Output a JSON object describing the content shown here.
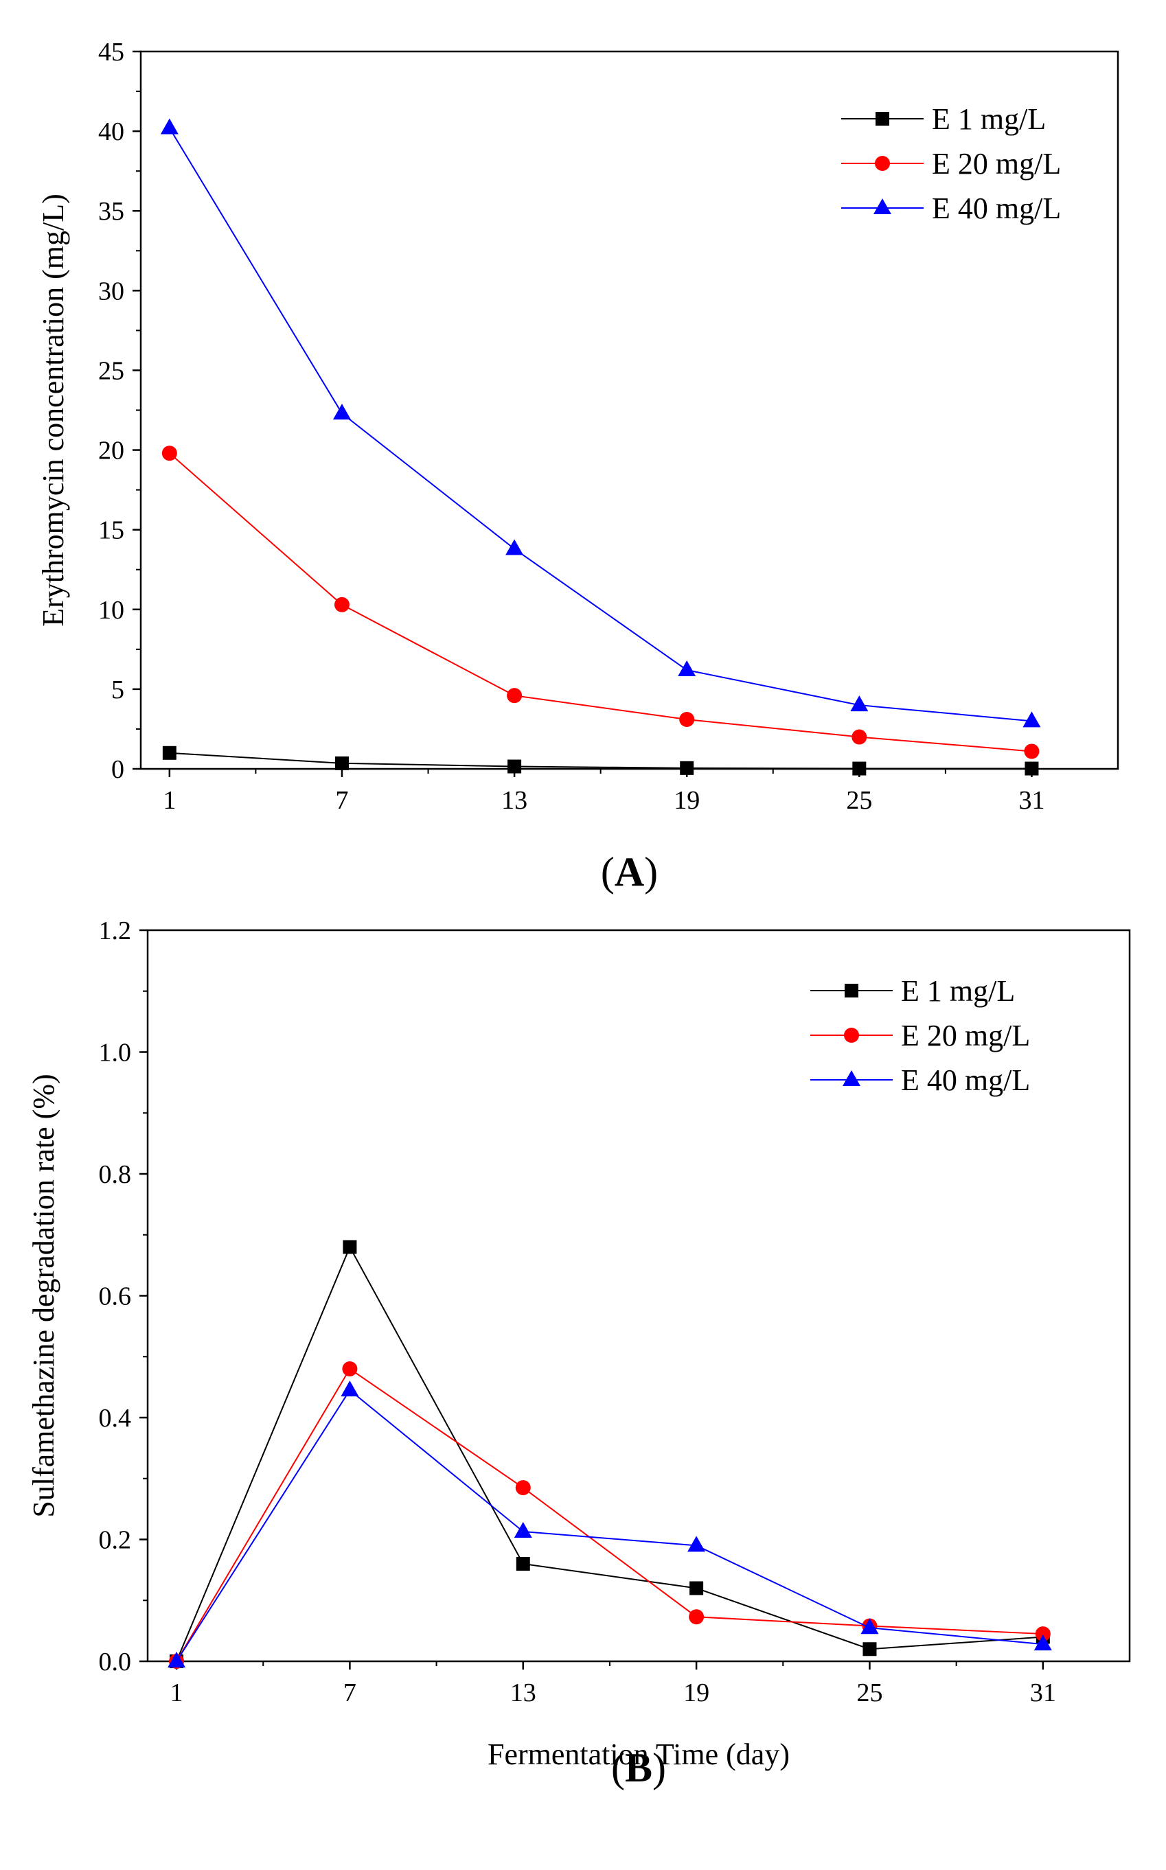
{
  "chart_data": [
    {
      "type": "line",
      "panel_label": "A",
      "title": "",
      "xlabel": "",
      "ylabel": "Erythromycin concentration (mg/L)",
      "x": [
        1,
        7,
        13,
        19,
        25,
        31
      ],
      "x_tick_labels": [
        "1",
        "7",
        "13",
        "19",
        "25",
        "31"
      ],
      "xlim": [
        0,
        34
      ],
      "ylim": [
        0,
        45
      ],
      "y_ticks": [
        0,
        5,
        10,
        15,
        20,
        25,
        30,
        35,
        40,
        45
      ],
      "y_tick_labels": [
        "0",
        "5",
        "10",
        "15",
        "20",
        "25",
        "30",
        "35",
        "40",
        "45"
      ],
      "legend_position": "top-right",
      "grid": false,
      "series": [
        {
          "name": "E 1 mg/L",
          "color": "#000000",
          "marker": "square",
          "values": [
            1.0,
            0.35,
            0.15,
            0.05,
            0.02,
            0.02
          ]
        },
        {
          "name": "E 20 mg/L",
          "color": "#ff0000",
          "marker": "circle",
          "values": [
            19.8,
            10.3,
            4.6,
            3.1,
            2.0,
            1.1
          ]
        },
        {
          "name": "E 40 mg/L",
          "color": "#0000ff",
          "marker": "triangle",
          "values": [
            40.2,
            22.3,
            13.8,
            6.2,
            4.0,
            3.0
          ]
        }
      ]
    },
    {
      "type": "line",
      "panel_label": "B",
      "title": "",
      "xlabel": "Fermentation Time (day)",
      "ylabel": "Sulfamethazine degradation rate (%)",
      "x": [
        1,
        7,
        13,
        19,
        25,
        31
      ],
      "x_tick_labels": [
        "1",
        "7",
        "13",
        "19",
        "25",
        "31"
      ],
      "xlim": [
        0,
        34
      ],
      "ylim": [
        0,
        1.2
      ],
      "y_ticks": [
        0,
        0.2,
        0.4,
        0.6,
        0.8,
        1.0,
        1.2
      ],
      "y_tick_labels": [
        "0.0",
        "0.2",
        "0.4",
        "0.6",
        "0.8",
        "1.0",
        "1.2"
      ],
      "legend_position": "top-right",
      "grid": false,
      "series": [
        {
          "name": "E 1 mg/L",
          "color": "#000000",
          "marker": "square",
          "values": [
            0.0,
            0.68,
            0.16,
            0.12,
            0.02,
            0.04
          ]
        },
        {
          "name": "E 20 mg/L",
          "color": "#ff0000",
          "marker": "circle",
          "values": [
            0.0,
            0.48,
            0.285,
            0.073,
            0.058,
            0.045
          ]
        },
        {
          "name": "E 40 mg/L",
          "color": "#0000ff",
          "marker": "triangle",
          "values": [
            0.0,
            0.445,
            0.213,
            0.19,
            0.055,
            0.028
          ]
        }
      ]
    }
  ]
}
